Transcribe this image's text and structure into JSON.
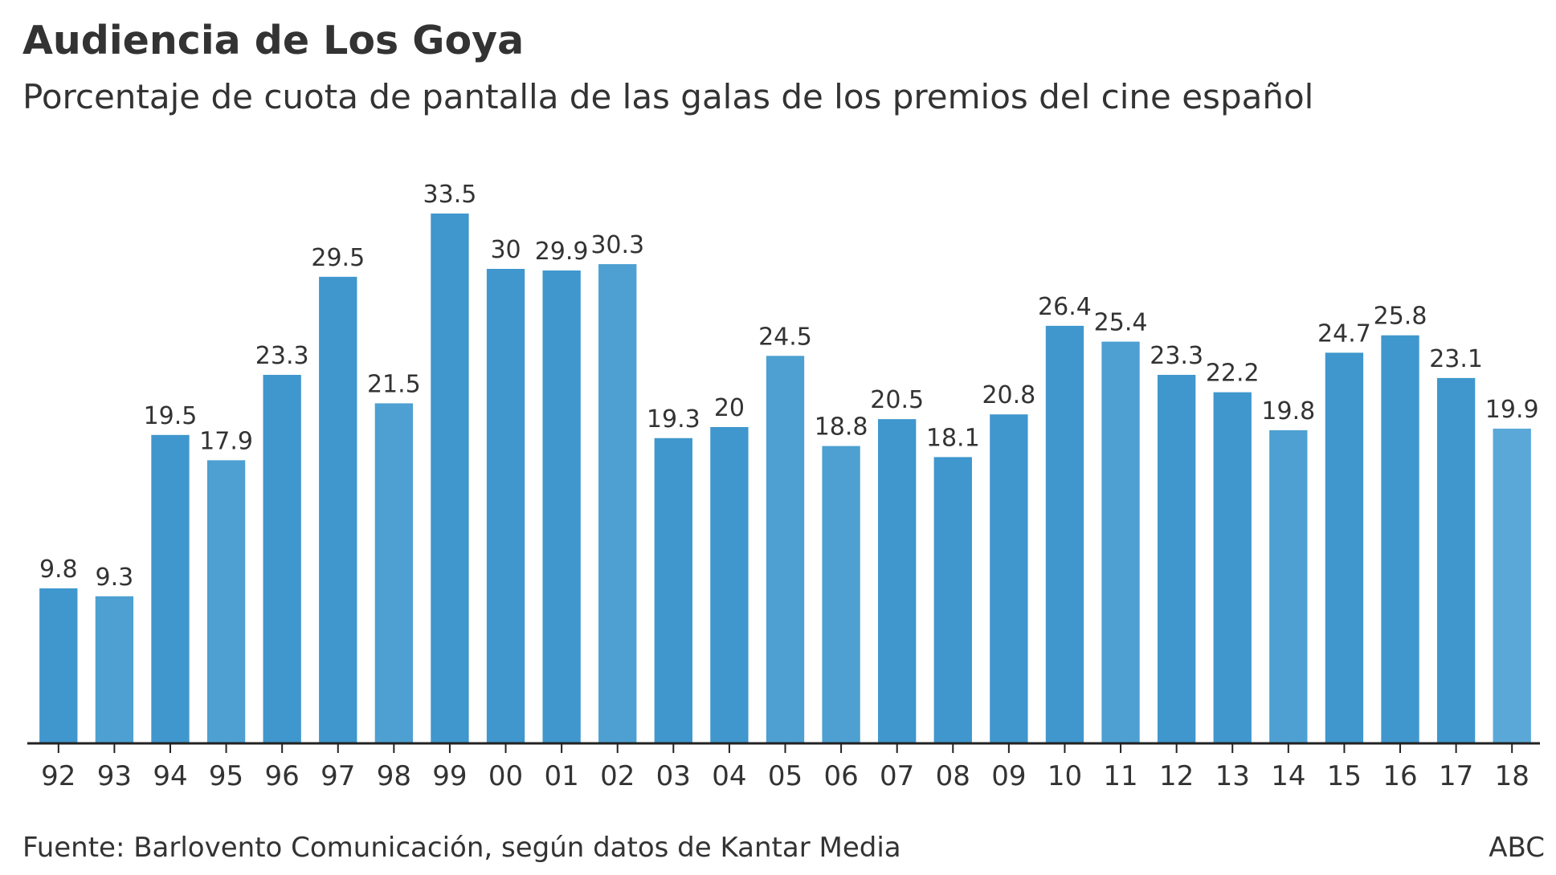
{
  "chart_data": {
    "type": "bar",
    "title": "Audiencia de Los Goya",
    "subtitle": "Porcentaje de cuota de pantalla de las galas de los premios del cine español",
    "xlabel": "",
    "ylabel": "",
    "ylim": [
      0,
      33.5
    ],
    "categories": [
      "92",
      "93",
      "94",
      "95",
      "96",
      "97",
      "98",
      "99",
      "00",
      "01",
      "02",
      "03",
      "04",
      "05",
      "06",
      "07",
      "08",
      "09",
      "10",
      "11",
      "12",
      "13",
      "14",
      "15",
      "16",
      "17",
      "18"
    ],
    "values": [
      9.8,
      9.3,
      19.5,
      17.9,
      23.3,
      29.5,
      21.5,
      33.5,
      30,
      29.9,
      30.3,
      19.3,
      20,
      24.5,
      18.8,
      20.5,
      18.1,
      20.8,
      26.4,
      25.4,
      23.3,
      22.2,
      19.8,
      24.7,
      25.8,
      23.1,
      19.9
    ],
    "bar_colors": [
      "#3f97cd",
      "#4da0d1",
      "#3f97cd",
      "#4da0d1",
      "#3f97cd",
      "#3f97cd",
      "#4da0d1",
      "#3f97cd",
      "#3f97cd",
      "#3f97cd",
      "#4da0d1",
      "#3f97cd",
      "#3f97cd",
      "#4da0d1",
      "#4da0d1",
      "#3f97cd",
      "#3f97cd",
      "#3f97cd",
      "#3f97cd",
      "#4da0d1",
      "#3f97cd",
      "#3f97cd",
      "#4da0d1",
      "#3f97cd",
      "#3f97cd",
      "#3f97cd",
      "#5aa8d8"
    ],
    "grid": false,
    "legend": "none"
  },
  "footer": {
    "source": "Fuente: Barlovento Comunicación, según datos de Kantar Media",
    "brand": "ABC"
  }
}
